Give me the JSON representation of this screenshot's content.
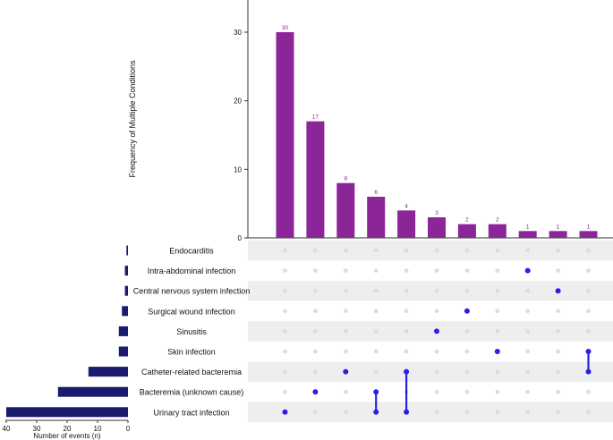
{
  "chart_data": {
    "type": "upset",
    "colors": {
      "bar": "#8B2598",
      "bar_label": "#8B2598",
      "dot_active": "#2A1FE6",
      "dot_inactive": "#DDDDDD",
      "set_bar": "#1A1A6E",
      "stripe": "#EEEEEE",
      "axis": "#333333",
      "text": "#111111"
    },
    "intersection_chart": {
      "ylabel": "Frequency of Multiple Conditions",
      "ylim": [
        0,
        35
      ],
      "yticks": [
        0,
        10,
        20,
        30
      ],
      "values": [
        30,
        17,
        8,
        6,
        4,
        3,
        2,
        2,
        1,
        1,
        1
      ],
      "value_labels": [
        "30",
        "17",
        "8",
        "6",
        "4",
        "3",
        "2",
        "2",
        "1",
        "1",
        "1"
      ]
    },
    "sets": [
      {
        "name": "Endocarditis",
        "count": 0.5
      },
      {
        "name": "Intra-abdominal infection",
        "count": 1
      },
      {
        "name": "Central nervous system infection",
        "count": 1
      },
      {
        "name": "Surgical wound infection",
        "count": 2
      },
      {
        "name": "Sinusitis",
        "count": 3
      },
      {
        "name": "Skin infection",
        "count": 3
      },
      {
        "name": "Catheter-related bacteremia",
        "count": 13
      },
      {
        "name": "Bacteremia (unknown cause)",
        "count": 23
      },
      {
        "name": "Urinary tract infection",
        "count": 40
      }
    ],
    "intersections": [
      [
        8
      ],
      [
        7
      ],
      [
        6
      ],
      [
        7,
        8
      ],
      [
        6,
        8
      ],
      [
        4
      ],
      [
        3
      ],
      [
        5
      ],
      [
        1
      ],
      [
        2
      ],
      [
        5,
        6
      ]
    ],
    "set_size_axis": {
      "xlabel": "Number of events (n)",
      "xlim": [
        0,
        40
      ],
      "ticks": [
        40,
        30,
        20,
        10,
        0
      ]
    }
  }
}
